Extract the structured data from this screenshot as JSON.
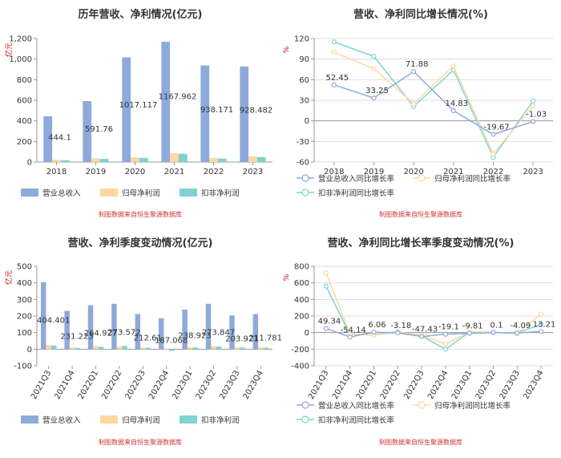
{
  "colors": {
    "revenue": "#8eaadb",
    "net_profit": "#fdd8a0",
    "deducted_profit": "#7fd3d4",
    "revenue_line": "#8eaadb",
    "net_line": "#fdd8a0",
    "deducted_line": "#7fd3d4",
    "axis": "#999999",
    "grid": "#dddddd"
  },
  "chart_data": [
    {
      "id": "annual-amount",
      "type": "bar",
      "title": "历年营收、净利情况(亿元)",
      "unit_label": "亿元",
      "source": "制图数据来自恒生聚源数据库",
      "categories": [
        "2018",
        "2019",
        "2020",
        "2021",
        "2022",
        "2023"
      ],
      "ylim": [
        0,
        1200
      ],
      "yticks": [
        "0",
        "200",
        "400",
        "600",
        "800",
        "1,000",
        "1,200"
      ],
      "ytick_values": [
        0,
        200,
        400,
        600,
        800,
        1000,
        1200
      ],
      "series": [
        {
          "name": "营业总收入",
          "color_key": "revenue",
          "values": [
            444.1,
            591.76,
            1017.117,
            1167.962,
            938.171,
            928.482
          ]
        },
        {
          "name": "归母净利润",
          "color_key": "net_profit",
          "values": [
            22,
            36,
            45,
            85,
            38,
            55
          ]
        },
        {
          "name": "扣非净利润",
          "color_key": "deducted_profit",
          "values": [
            18,
            30,
            40,
            80,
            33,
            48
          ]
        }
      ],
      "data_labels": [
        "444.1",
        "591.76",
        "1017.117",
        "1167.962",
        "938.171",
        "928.482"
      ],
      "legend_position": "bottom-left",
      "grid": false
    },
    {
      "id": "annual-growth",
      "type": "line",
      "title": "营收、净利同比增长情况(%)",
      "unit_label": "%",
      "source": "制图数据来自恒生聚源数据库",
      "categories": [
        "2018",
        "2019",
        "2020",
        "2021",
        "2022",
        "2023"
      ],
      "ylim": [
        -60,
        120
      ],
      "yticks": [
        "-60",
        "-30",
        "0",
        "30",
        "60",
        "90",
        "120"
      ],
      "ytick_values": [
        -60,
        -30,
        0,
        30,
        60,
        90,
        120
      ],
      "series": [
        {
          "name": "营业总收入同比增长率",
          "color_key": "revenue_line",
          "values": [
            52.45,
            33.25,
            71.88,
            14.83,
            -19.67,
            -1.03
          ]
        },
        {
          "name": "归母净利润同比增长率",
          "color_key": "net_line",
          "values": [
            100,
            76,
            25,
            80,
            -48,
            22
          ]
        },
        {
          "name": "扣非净利润同比增长率",
          "color_key": "deducted_line",
          "values": [
            115,
            94,
            21,
            74,
            -53,
            29
          ]
        }
      ],
      "data_labels": [
        "52.45",
        "33.25",
        "71.88",
        "14.83",
        "-19.67",
        "-1.03"
      ],
      "legend_position": "bottom",
      "grid": true
    },
    {
      "id": "quarterly-amount",
      "type": "bar",
      "title": "营收、净利季度变动情况(亿元)",
      "unit_label": "亿元",
      "source": "制图数据来自恒生聚源数据库",
      "categories": [
        "2021Q3",
        "2021Q4",
        "2022Q1",
        "2022Q2",
        "2022Q3",
        "2022Q4",
        "2023Q1",
        "2023Q2",
        "2023Q3",
        "2023Q4"
      ],
      "ylim": [
        -100,
        500
      ],
      "yticks": [
        "-100",
        "0",
        "100",
        "200",
        "300",
        "400",
        "500"
      ],
      "ytick_values": [
        -100,
        0,
        100,
        200,
        300,
        400,
        500
      ],
      "series": [
        {
          "name": "营业总收入",
          "color_key": "revenue",
          "values": [
            404.401,
            231.223,
            264.927,
            273.572,
            212.61,
            187.068,
            238.923,
            273.847,
            203.921,
            211.781
          ]
        },
        {
          "name": "归母净利润",
          "color_key": "net_profit",
          "values": [
            25,
            10,
            18,
            15,
            10,
            -5,
            12,
            18,
            12,
            11
          ]
        },
        {
          "name": "扣非净利润",
          "color_key": "deducted_profit",
          "values": [
            22,
            8,
            15,
            20,
            8,
            -10,
            10,
            16,
            10,
            9
          ]
        }
      ],
      "data_labels": [
        "404.401",
        "231.223",
        "264.927",
        "273.572",
        "212.61",
        "187.068",
        "238.923",
        "273.847",
        "203.921",
        "211.781"
      ],
      "legend_position": "bottom-left",
      "grid": false
    },
    {
      "id": "quarterly-growth",
      "type": "line",
      "title": "营收、净利同比增长率季度变动情况(%)",
      "unit_label": "%",
      "source": "制图数据来自恒生聚源数据库",
      "categories": [
        "2021Q3",
        "2021Q4",
        "2022Q1",
        "2022Q2",
        "2022Q3",
        "2022Q4",
        "2023Q1",
        "2023Q2",
        "2023Q3",
        "2023Q4"
      ],
      "ylim": [
        -400,
        800
      ],
      "yticks": [
        "-400",
        "-200",
        "0",
        "200",
        "400",
        "600",
        "800"
      ],
      "ytick_values": [
        -400,
        -200,
        0,
        200,
        400,
        600,
        800
      ],
      "series": [
        {
          "name": "营业总收入同比增长率",
          "color_key": "revenue_line",
          "values": [
            49.34,
            -54.14,
            6.06,
            -3.18,
            -47.43,
            -19.1,
            -9.81,
            0.1,
            -4.09,
            13.21
          ]
        },
        {
          "name": "归母净利润同比增长率",
          "color_key": "net_line",
          "values": [
            720,
            -20,
            -30,
            5,
            -30,
            -140,
            10,
            5,
            -10,
            225
          ]
        },
        {
          "name": "扣非净利润同比增长率",
          "color_key": "deducted_line",
          "values": [
            560,
            -25,
            -25,
            10,
            -40,
            -200,
            5,
            0,
            -5,
            100
          ]
        }
      ],
      "data_labels": [
        "49.34",
        "-54.14",
        "6.06",
        "-3.18",
        "-47.43",
        "-19.1",
        "-9.81",
        "0.1",
        "-4.09",
        "13.21"
      ],
      "legend_position": "bottom",
      "grid": true
    }
  ]
}
